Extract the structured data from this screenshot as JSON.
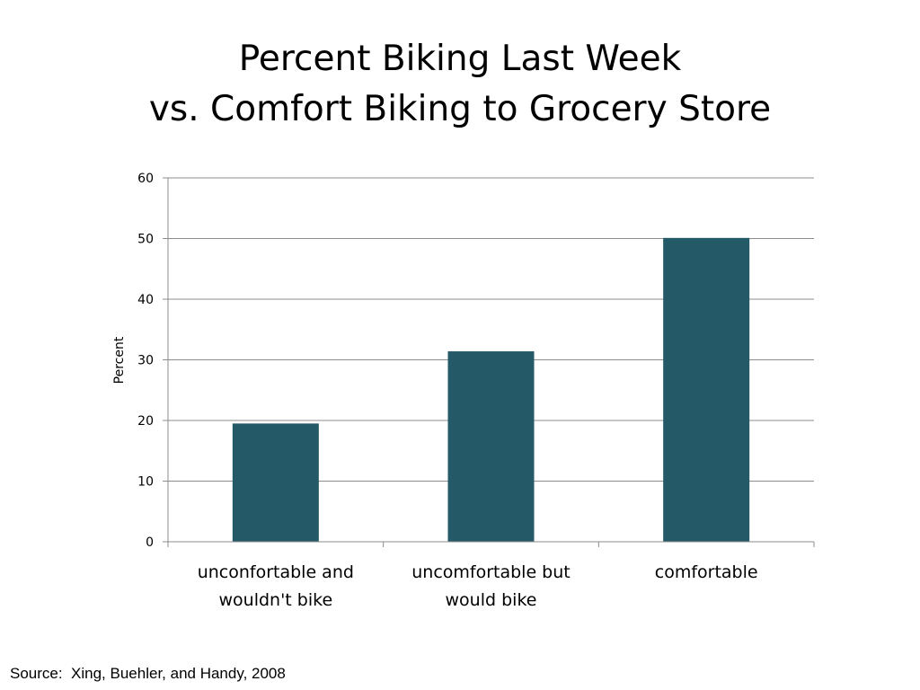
{
  "slide": {
    "title_line1": "Percent Biking Last Week",
    "title_line2": "vs. Comfort Biking to Grocery Store",
    "source": "Source:  Xing, Buehler, and Handy, 2008"
  },
  "chart_data": {
    "type": "bar",
    "title": "",
    "xlabel": "",
    "ylabel": "Percent",
    "categories": [
      [
        "unconfortable and",
        "wouldn't bike"
      ],
      [
        "uncomfortable but",
        "would bike"
      ],
      [
        "comfortable"
      ]
    ],
    "values": [
      19.5,
      31.4,
      50.1
    ],
    "ylim": [
      0,
      60
    ],
    "yticks": [
      0,
      10,
      20,
      30,
      40,
      50,
      60
    ],
    "grid": true,
    "legend": "none",
    "bar_color": "#245968",
    "grid_color": "#8c8c8c"
  }
}
